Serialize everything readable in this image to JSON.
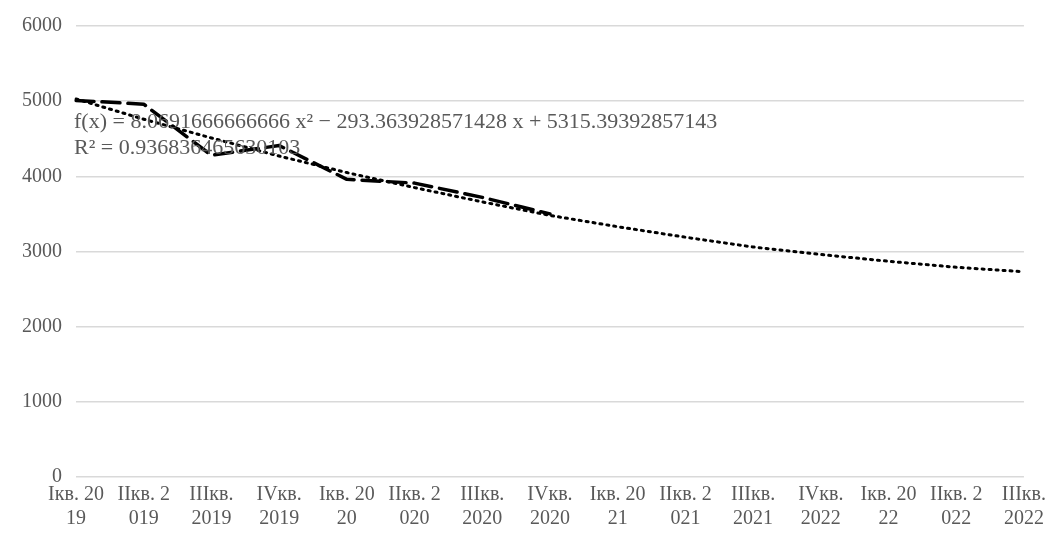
{
  "chart_data": {
    "type": "line",
    "categories": [
      "Iкв. 2019",
      "IIкв. 2019",
      "IIIкв. 2019",
      "IVкв. 2019",
      "Iкв. 2020",
      "IIкв. 2020",
      "IIIкв. 2020",
      "IVкв. 2020",
      "Iкв. 2021",
      "IIкв. 2021",
      "IIIкв. 2021",
      "IVкв. 2022",
      "Iкв. 2022",
      "IIкв. 2022",
      "IIIкв. 2022"
    ],
    "series": [
      {
        "color": "#000000",
        "line_style": "dashed",
        "values": [
          5010,
          4960,
          4280,
          4410,
          3960,
          3910,
          3720,
          3500,
          null,
          null,
          null,
          null,
          null,
          null,
          null
        ]
      },
      {
        "color": "#000000",
        "line_style": "dotted",
        "values": [
          5030,
          4760,
          4510,
          4270,
          4050,
          3850,
          3660,
          3480,
          3330,
          3190,
          3060,
          2960,
          2870,
          2790,
          2730
        ]
      }
    ],
    "ylim": [
      0,
      6000
    ],
    "yticks": [
      0,
      1000,
      2000,
      3000,
      4000,
      5000,
      6000
    ],
    "grid": "y",
    "legend": false,
    "marker": "none",
    "annotations": [
      "f(x) = 8.0691666666666 x² − 293.363928571428 x + 5315.39392857143",
      "R² = 0.936836465630103"
    ]
  }
}
